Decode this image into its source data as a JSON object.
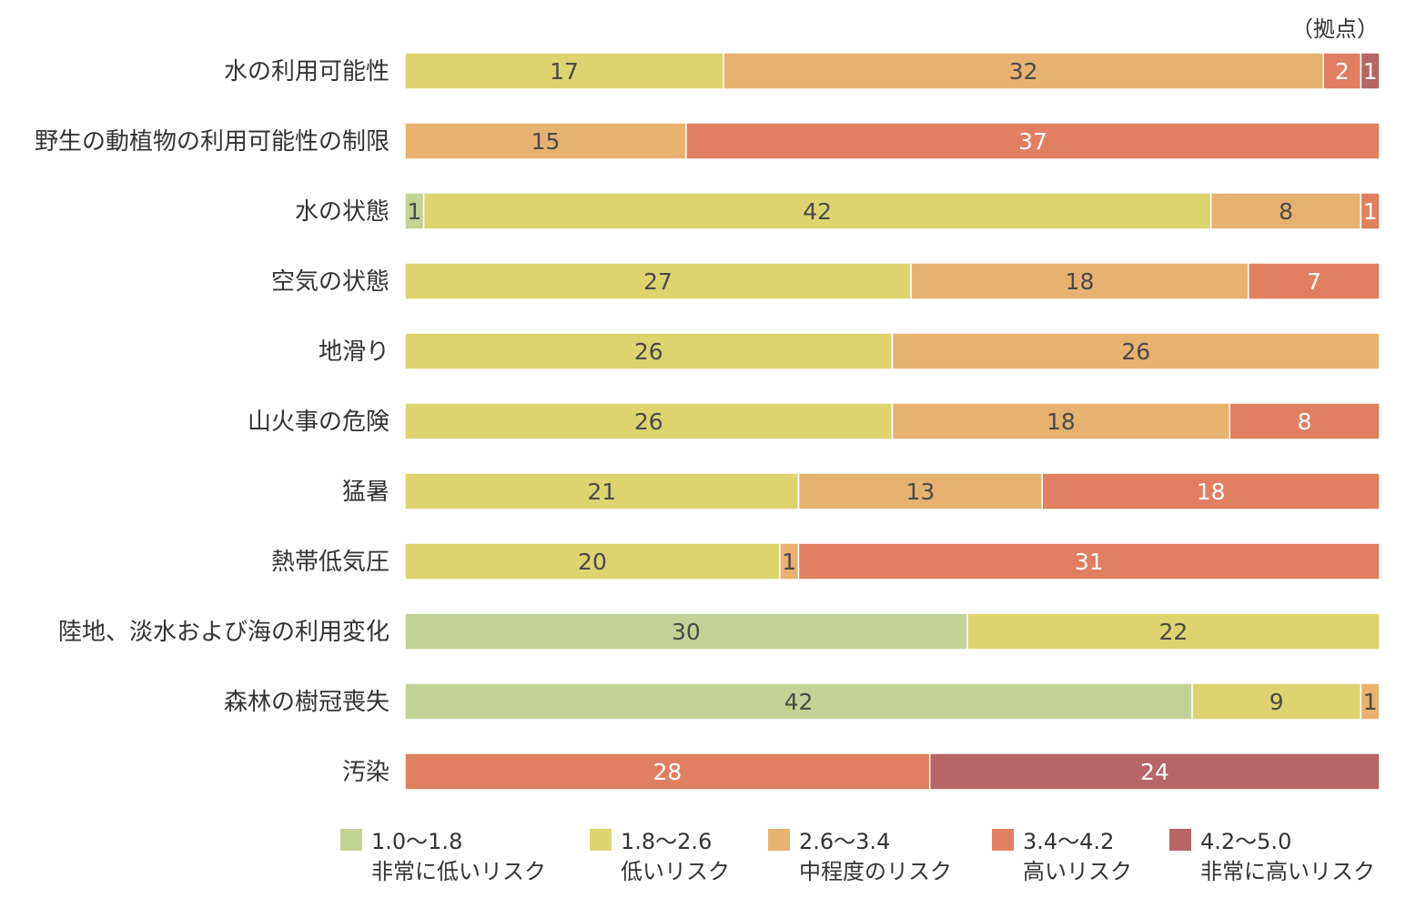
{
  "unit_label": "（拠点）",
  "chart_data": {
    "type": "bar",
    "orientation": "horizontal",
    "stacked": true,
    "categories": [
      "水の利用可能性",
      "野生の動植物の利用可能性の制限",
      "水の状態",
      "空気の状態",
      "地滑り",
      "山火事の危険",
      "猛暑",
      "熱帯低気圧",
      "陸地、淡水および海の利用変化",
      "森林の樹冠喪失",
      "汚染"
    ],
    "series": [
      {
        "name": "1.0〜1.8",
        "subname": "非常に低いリスク",
        "color": "#c3d396",
        "values": [
          0,
          0,
          1,
          0,
          0,
          0,
          0,
          0,
          30,
          42,
          0
        ]
      },
      {
        "name": "1.8〜2.6",
        "subname": "低いリスク",
        "color": "#ddd46f",
        "values": [
          17,
          0,
          42,
          27,
          26,
          26,
          21,
          20,
          22,
          9,
          0
        ]
      },
      {
        "name": "2.6〜3.4",
        "subname": "中程度のリスク",
        "color": "#e7b26f",
        "values": [
          32,
          15,
          8,
          18,
          26,
          18,
          13,
          1,
          0,
          1,
          0
        ]
      },
      {
        "name": "3.4〜4.2",
        "subname": "高いリスク",
        "color": "#e08060",
        "values": [
          2,
          37,
          1,
          7,
          0,
          8,
          18,
          31,
          0,
          0,
          28
        ]
      },
      {
        "name": "4.2〜5.0",
        "subname": "非常に高いリスク",
        "color": "#b76567",
        "values": [
          1,
          0,
          0,
          0,
          0,
          0,
          0,
          0,
          0,
          0,
          24
        ]
      }
    ],
    "xlim": [
      0,
      52
    ],
    "legend": "bottom",
    "grid": false
  }
}
